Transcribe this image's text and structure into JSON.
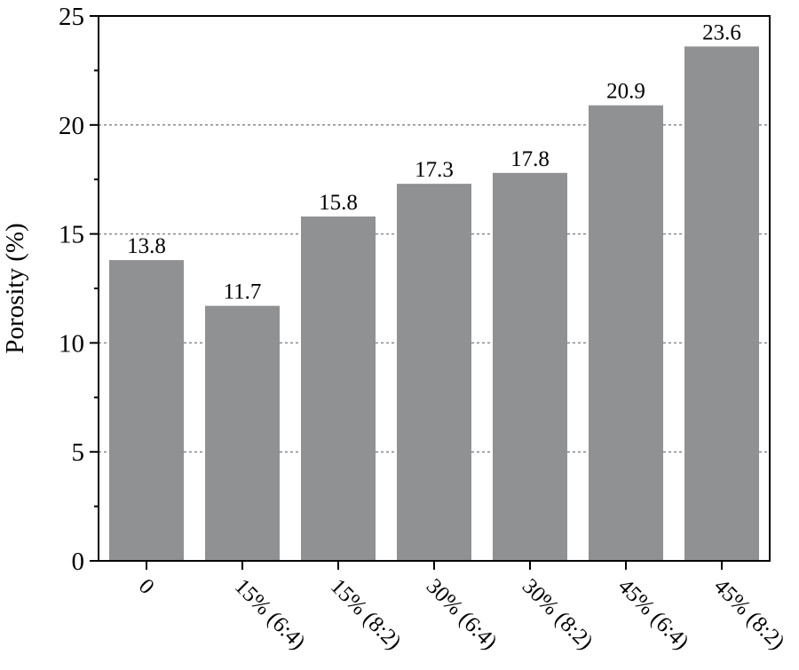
{
  "chart_data": {
    "type": "bar",
    "categories": [
      "0",
      "15% (6:4)",
      "15% (8:2)",
      "30% (6:4)",
      "30% (8:2)",
      "45% (6:4)",
      "45% (8:2)"
    ],
    "values": [
      13.8,
      11.7,
      15.8,
      17.3,
      17.8,
      20.9,
      23.6
    ],
    "value_labels": [
      "13.8",
      "11.7",
      "15.8",
      "17.3",
      "17.8",
      "20.9",
      "23.6"
    ],
    "title": "",
    "xlabel": "",
    "ylabel": "Porosity (%)",
    "ylim": [
      0,
      25
    ],
    "yticks": [
      0,
      5,
      10,
      15,
      20,
      25
    ],
    "ytick_labels": [
      "0",
      "5",
      "10",
      "15",
      "20",
      "25"
    ],
    "grid": "horizontal dotted",
    "bar_color": "#8f9193",
    "grid_color": "#8a8a8a"
  }
}
